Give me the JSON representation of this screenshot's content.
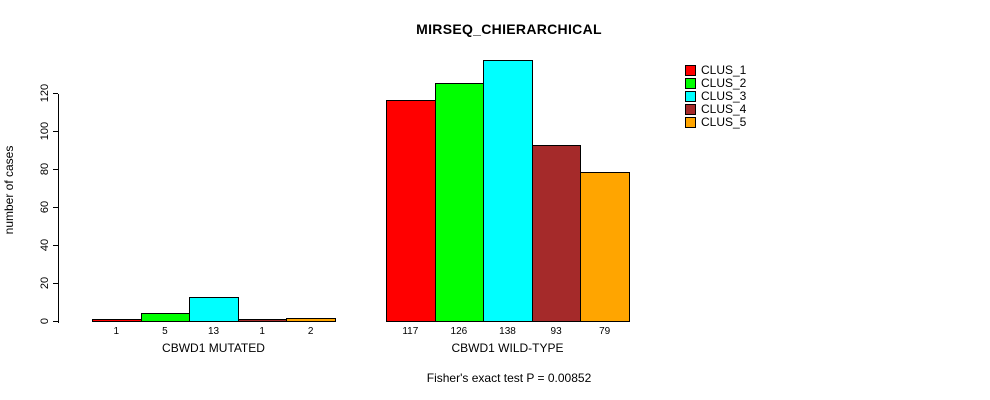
{
  "title": "MIRSEQ_CHIERARCHICAL",
  "ylabel": "number of cases",
  "footer": "Fisher's exact test P = 0.00852",
  "legend": {
    "items": [
      {
        "label": "CLUS_1",
        "color": "#FF0000"
      },
      {
        "label": "CLUS_2",
        "color": "#00FF00"
      },
      {
        "label": "CLUS_3",
        "color": "#00FFFF"
      },
      {
        "label": "CLUS_4",
        "color": "#A52A2A"
      },
      {
        "label": "CLUS_5",
        "color": "#FFA500"
      }
    ]
  },
  "chart_data": {
    "type": "bar",
    "title": "MIRSEQ_CHIERARCHICAL",
    "xlabel": "",
    "ylabel": "number of cases",
    "ylim": [
      0,
      138
    ],
    "yticks": [
      0,
      20,
      40,
      60,
      80,
      100,
      120
    ],
    "grid": false,
    "legend_position": "top-right",
    "categories": [
      "CBWD1 MUTATED",
      "CBWD1 WILD-TYPE"
    ],
    "series": [
      {
        "name": "CLUS_1",
        "color": "#FF0000",
        "values": [
          1,
          117
        ]
      },
      {
        "name": "CLUS_2",
        "color": "#00FF00",
        "values": [
          5,
          126
        ]
      },
      {
        "name": "CLUS_3",
        "color": "#00FFFF",
        "values": [
          13,
          138
        ]
      },
      {
        "name": "CLUS_4",
        "color": "#A52A2A",
        "values": [
          1,
          93
        ]
      },
      {
        "name": "CLUS_5",
        "color": "#FFA500",
        "values": [
          2,
          79
        ]
      }
    ],
    "value_labels_shown": true,
    "annotation": "Fisher's exact test P = 0.00852"
  }
}
